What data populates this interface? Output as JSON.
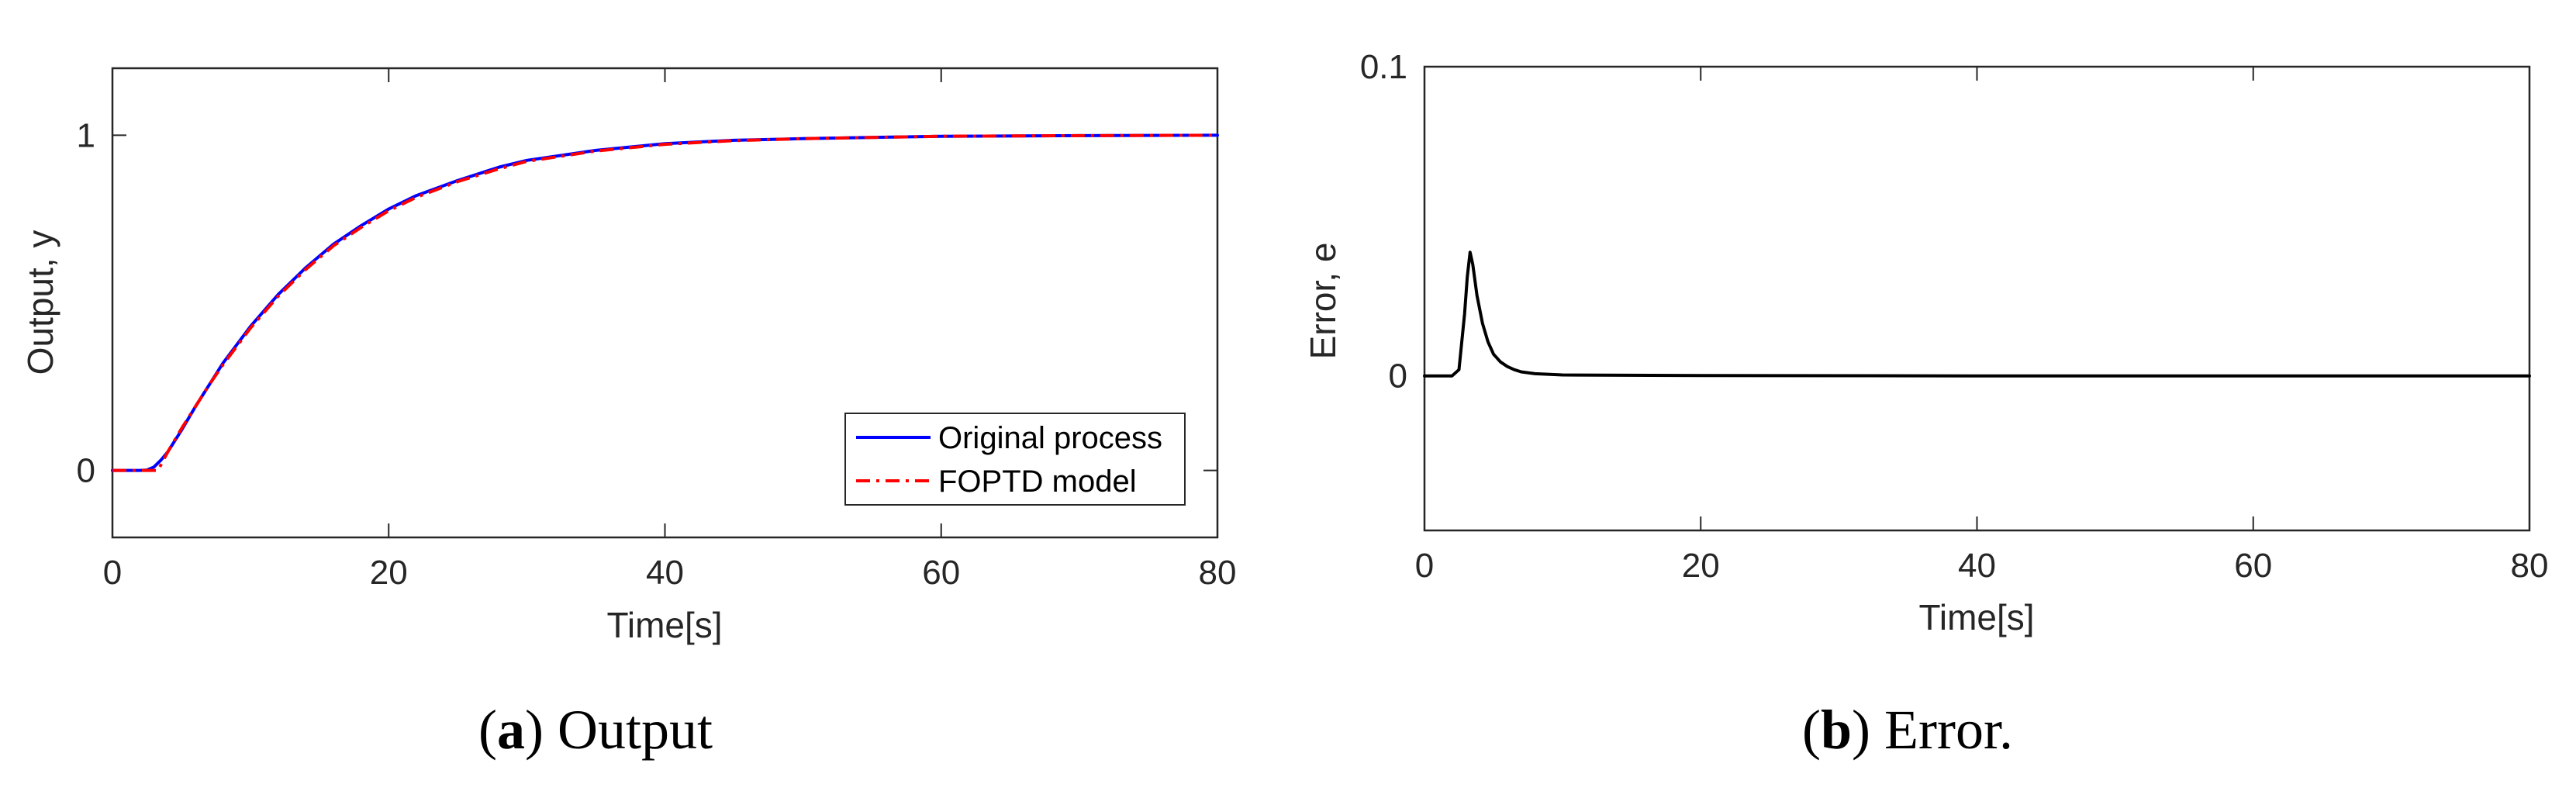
{
  "chart_data": [
    {
      "type": "line",
      "caption_letter": "a",
      "caption_text": "Output",
      "xlabel": "Time[s]",
      "ylabel": "Output, y",
      "xlim": [
        0,
        80
      ],
      "ylim": [
        -0.2,
        1.2
      ],
      "xticks": [
        "0",
        "20",
        "40",
        "60",
        "80"
      ],
      "yticks": [
        "0",
        "1"
      ],
      "legend_position": "bottom-right",
      "series": [
        {
          "name": "Original process",
          "color": "#0000ff",
          "style": "solid",
          "x": [
            0,
            2,
            2.5,
            3,
            3.5,
            4,
            5,
            6,
            7,
            8,
            10,
            12,
            14,
            16,
            18,
            20,
            22,
            25,
            28,
            30,
            35,
            40,
            45,
            50,
            60,
            70,
            80
          ],
          "y": [
            0,
            0,
            0.001,
            0.01,
            0.03,
            0.055,
            0.12,
            0.19,
            0.255,
            0.32,
            0.43,
            0.525,
            0.605,
            0.675,
            0.73,
            0.78,
            0.82,
            0.865,
            0.905,
            0.925,
            0.955,
            0.975,
            0.985,
            0.99,
            0.997,
            0.999,
            1.0
          ]
        },
        {
          "name": "FOPTD model",
          "color": "#ff0000",
          "style": "dashdot",
          "x": [
            0,
            3.3,
            4,
            5,
            6,
            7,
            8,
            10,
            12,
            14,
            16,
            18,
            20,
            22,
            25,
            28,
            30,
            35,
            40,
            45,
            50,
            60,
            70,
            80
          ],
          "y": [
            0,
            0,
            0.055,
            0.125,
            0.19,
            0.255,
            0.315,
            0.425,
            0.52,
            0.6,
            0.67,
            0.725,
            0.775,
            0.815,
            0.862,
            0.9,
            0.922,
            0.953,
            0.973,
            0.984,
            0.99,
            0.997,
            0.999,
            1.0
          ]
        }
      ]
    },
    {
      "type": "line",
      "caption_letter": "b",
      "caption_text": "Error.",
      "xlabel": "Time[s]",
      "ylabel": "Error, e",
      "xlim": [
        0,
        80
      ],
      "ylim": [
        -0.05,
        0.1
      ],
      "xticks": [
        "0",
        "20",
        "40",
        "60",
        "80"
      ],
      "yticks": [
        "0",
        "0.1"
      ],
      "series": [
        {
          "name": "Error",
          "color": "#000000",
          "style": "solid",
          "x": [
            0,
            2,
            2.5,
            2.9,
            3.1,
            3.3,
            3.5,
            3.8,
            4.2,
            4.6,
            5,
            5.5,
            6,
            6.5,
            7,
            8,
            10,
            20,
            40,
            60,
            80
          ],
          "y": [
            0,
            0,
            0.002,
            0.02,
            0.032,
            0.04,
            0.036,
            0.026,
            0.017,
            0.011,
            0.007,
            0.0045,
            0.003,
            0.002,
            0.0013,
            0.0007,
            0.0003,
            0.0001,
            0,
            0,
            0
          ]
        }
      ]
    }
  ]
}
